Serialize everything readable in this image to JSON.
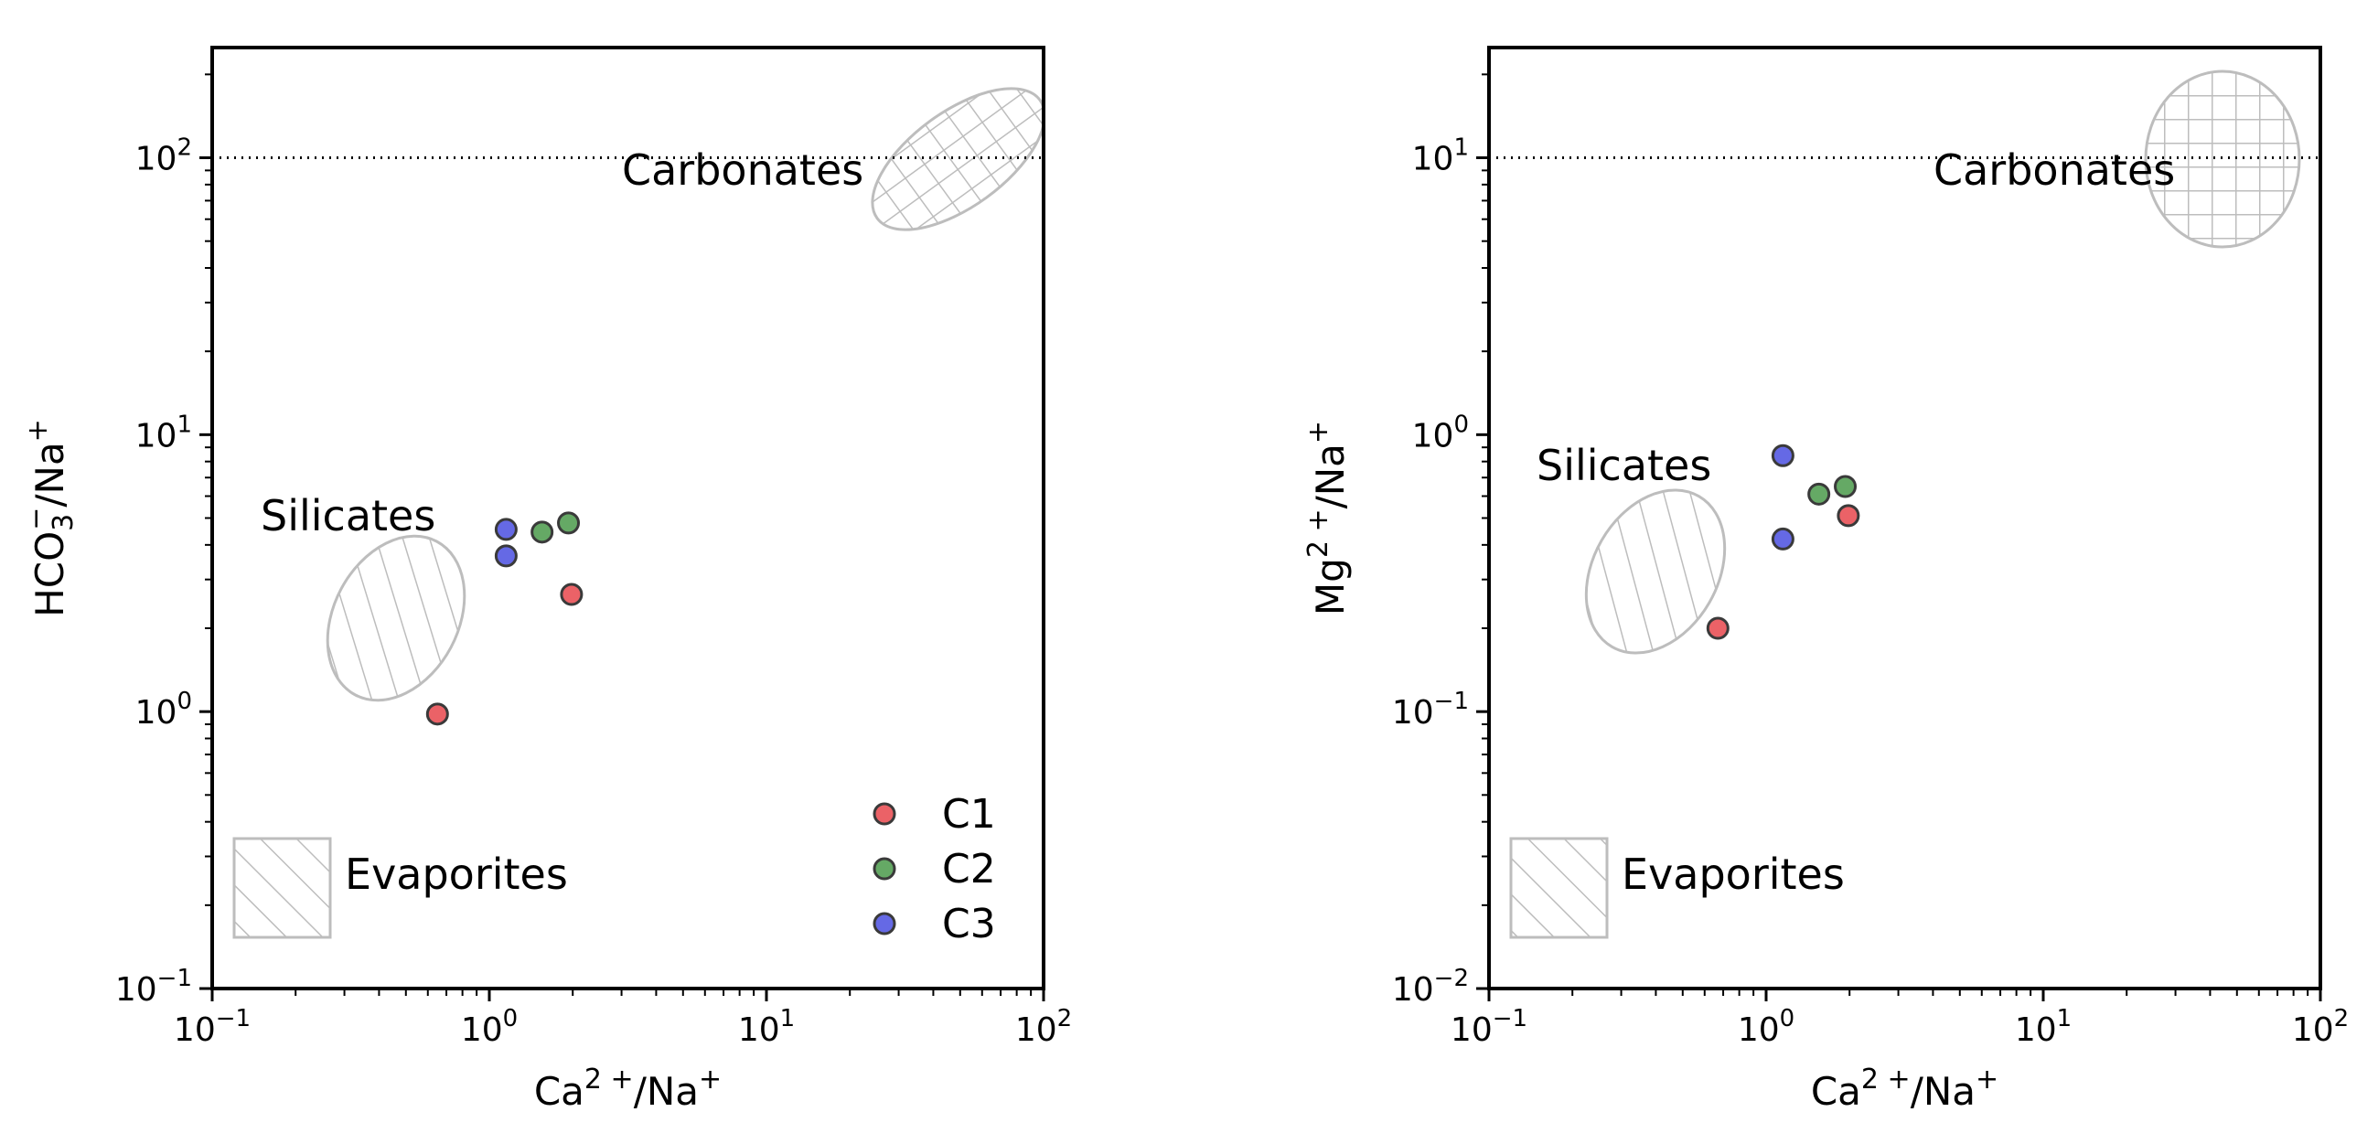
{
  "chart_data": [
    {
      "type": "scatter",
      "xlabel": {
        "base": "Ca",
        "base_sup": "2 +",
        "sep": "/Na",
        "sep_sup": "+"
      },
      "ylabel": {
        "base": "HCO",
        "base_sub": "3",
        "base_sup": "−",
        "sep": "/Na",
        "sep_sup": "+"
      },
      "xscale": "log",
      "yscale": "log",
      "xlim": [
        0.1,
        100
      ],
      "ylim": [
        0.1,
        250
      ],
      "xticks": [
        {
          "base": "10",
          "exp": "−1"
        },
        {
          "base": "10",
          "exp": "0"
        },
        {
          "base": "10",
          "exp": "1"
        },
        {
          "base": "10",
          "exp": "2"
        }
      ],
      "yticks": [
        {
          "base": "10",
          "exp": "−1"
        },
        {
          "base": "10",
          "exp": "0"
        },
        {
          "base": "10",
          "exp": "1"
        },
        {
          "base": "10",
          "exp": "2"
        }
      ],
      "reference_line": {
        "y": 100,
        "style": "dotted"
      },
      "regions": [
        {
          "name": "Carbonates",
          "pattern": "crosshatch"
        },
        {
          "name": "Silicates",
          "pattern": "diagonal"
        },
        {
          "name": "Evaporites",
          "pattern": "diagonal"
        }
      ],
      "series": [
        {
          "name": "C1",
          "color": "#e8474c",
          "points": [
            [
              0.65,
              0.98
            ],
            [
              1.98,
              2.65
            ]
          ]
        },
        {
          "name": "C2",
          "color": "#4a9a4a",
          "points": [
            [
              1.55,
              4.45
            ],
            [
              1.93,
              4.8
            ]
          ]
        },
        {
          "name": "C3",
          "color": "#4a4fe0",
          "points": [
            [
              1.15,
              4.55
            ],
            [
              1.15,
              3.65
            ]
          ]
        }
      ],
      "legend": {
        "position": "lower-right",
        "entries": [
          "C1",
          "C2",
          "C3"
        ]
      }
    },
    {
      "type": "scatter",
      "xlabel": {
        "base": "Ca",
        "base_sup": "2 +",
        "sep": "/Na",
        "sep_sup": "+"
      },
      "ylabel": {
        "base": "Mg",
        "base_sup": "2 +",
        "sep": "/Na",
        "sep_sup": "+"
      },
      "xscale": "log",
      "yscale": "log",
      "xlim": [
        0.1,
        100
      ],
      "ylim": [
        0.01,
        25
      ],
      "xticks": [
        {
          "base": "10",
          "exp": "−1"
        },
        {
          "base": "10",
          "exp": "0"
        },
        {
          "base": "10",
          "exp": "1"
        },
        {
          "base": "10",
          "exp": "2"
        }
      ],
      "yticks": [
        {
          "base": "10",
          "exp": "−2"
        },
        {
          "base": "10",
          "exp": "−1"
        },
        {
          "base": "10",
          "exp": "0"
        },
        {
          "base": "10",
          "exp": "1"
        }
      ],
      "reference_line": {
        "y": 10,
        "style": "dotted"
      },
      "regions": [
        {
          "name": "Carbonates",
          "pattern": "crosshatch"
        },
        {
          "name": "Silicates",
          "pattern": "diagonal"
        },
        {
          "name": "Evaporites",
          "pattern": "diagonal"
        }
      ],
      "series": [
        {
          "name": "C1",
          "color": "#e8474c",
          "points": [
            [
              0.67,
              0.2
            ],
            [
              1.98,
              0.51
            ]
          ]
        },
        {
          "name": "C2",
          "color": "#4a9a4a",
          "points": [
            [
              1.55,
              0.61
            ],
            [
              1.93,
              0.65
            ]
          ]
        },
        {
          "name": "C3",
          "color": "#4a4fe0",
          "points": [
            [
              1.15,
              0.84
            ],
            [
              1.15,
              0.42
            ]
          ]
        }
      ]
    }
  ],
  "colors": {
    "region_stroke": "#bdbdbd",
    "reference_line": "#000000",
    "marker_edge": "#3a3a3a"
  }
}
